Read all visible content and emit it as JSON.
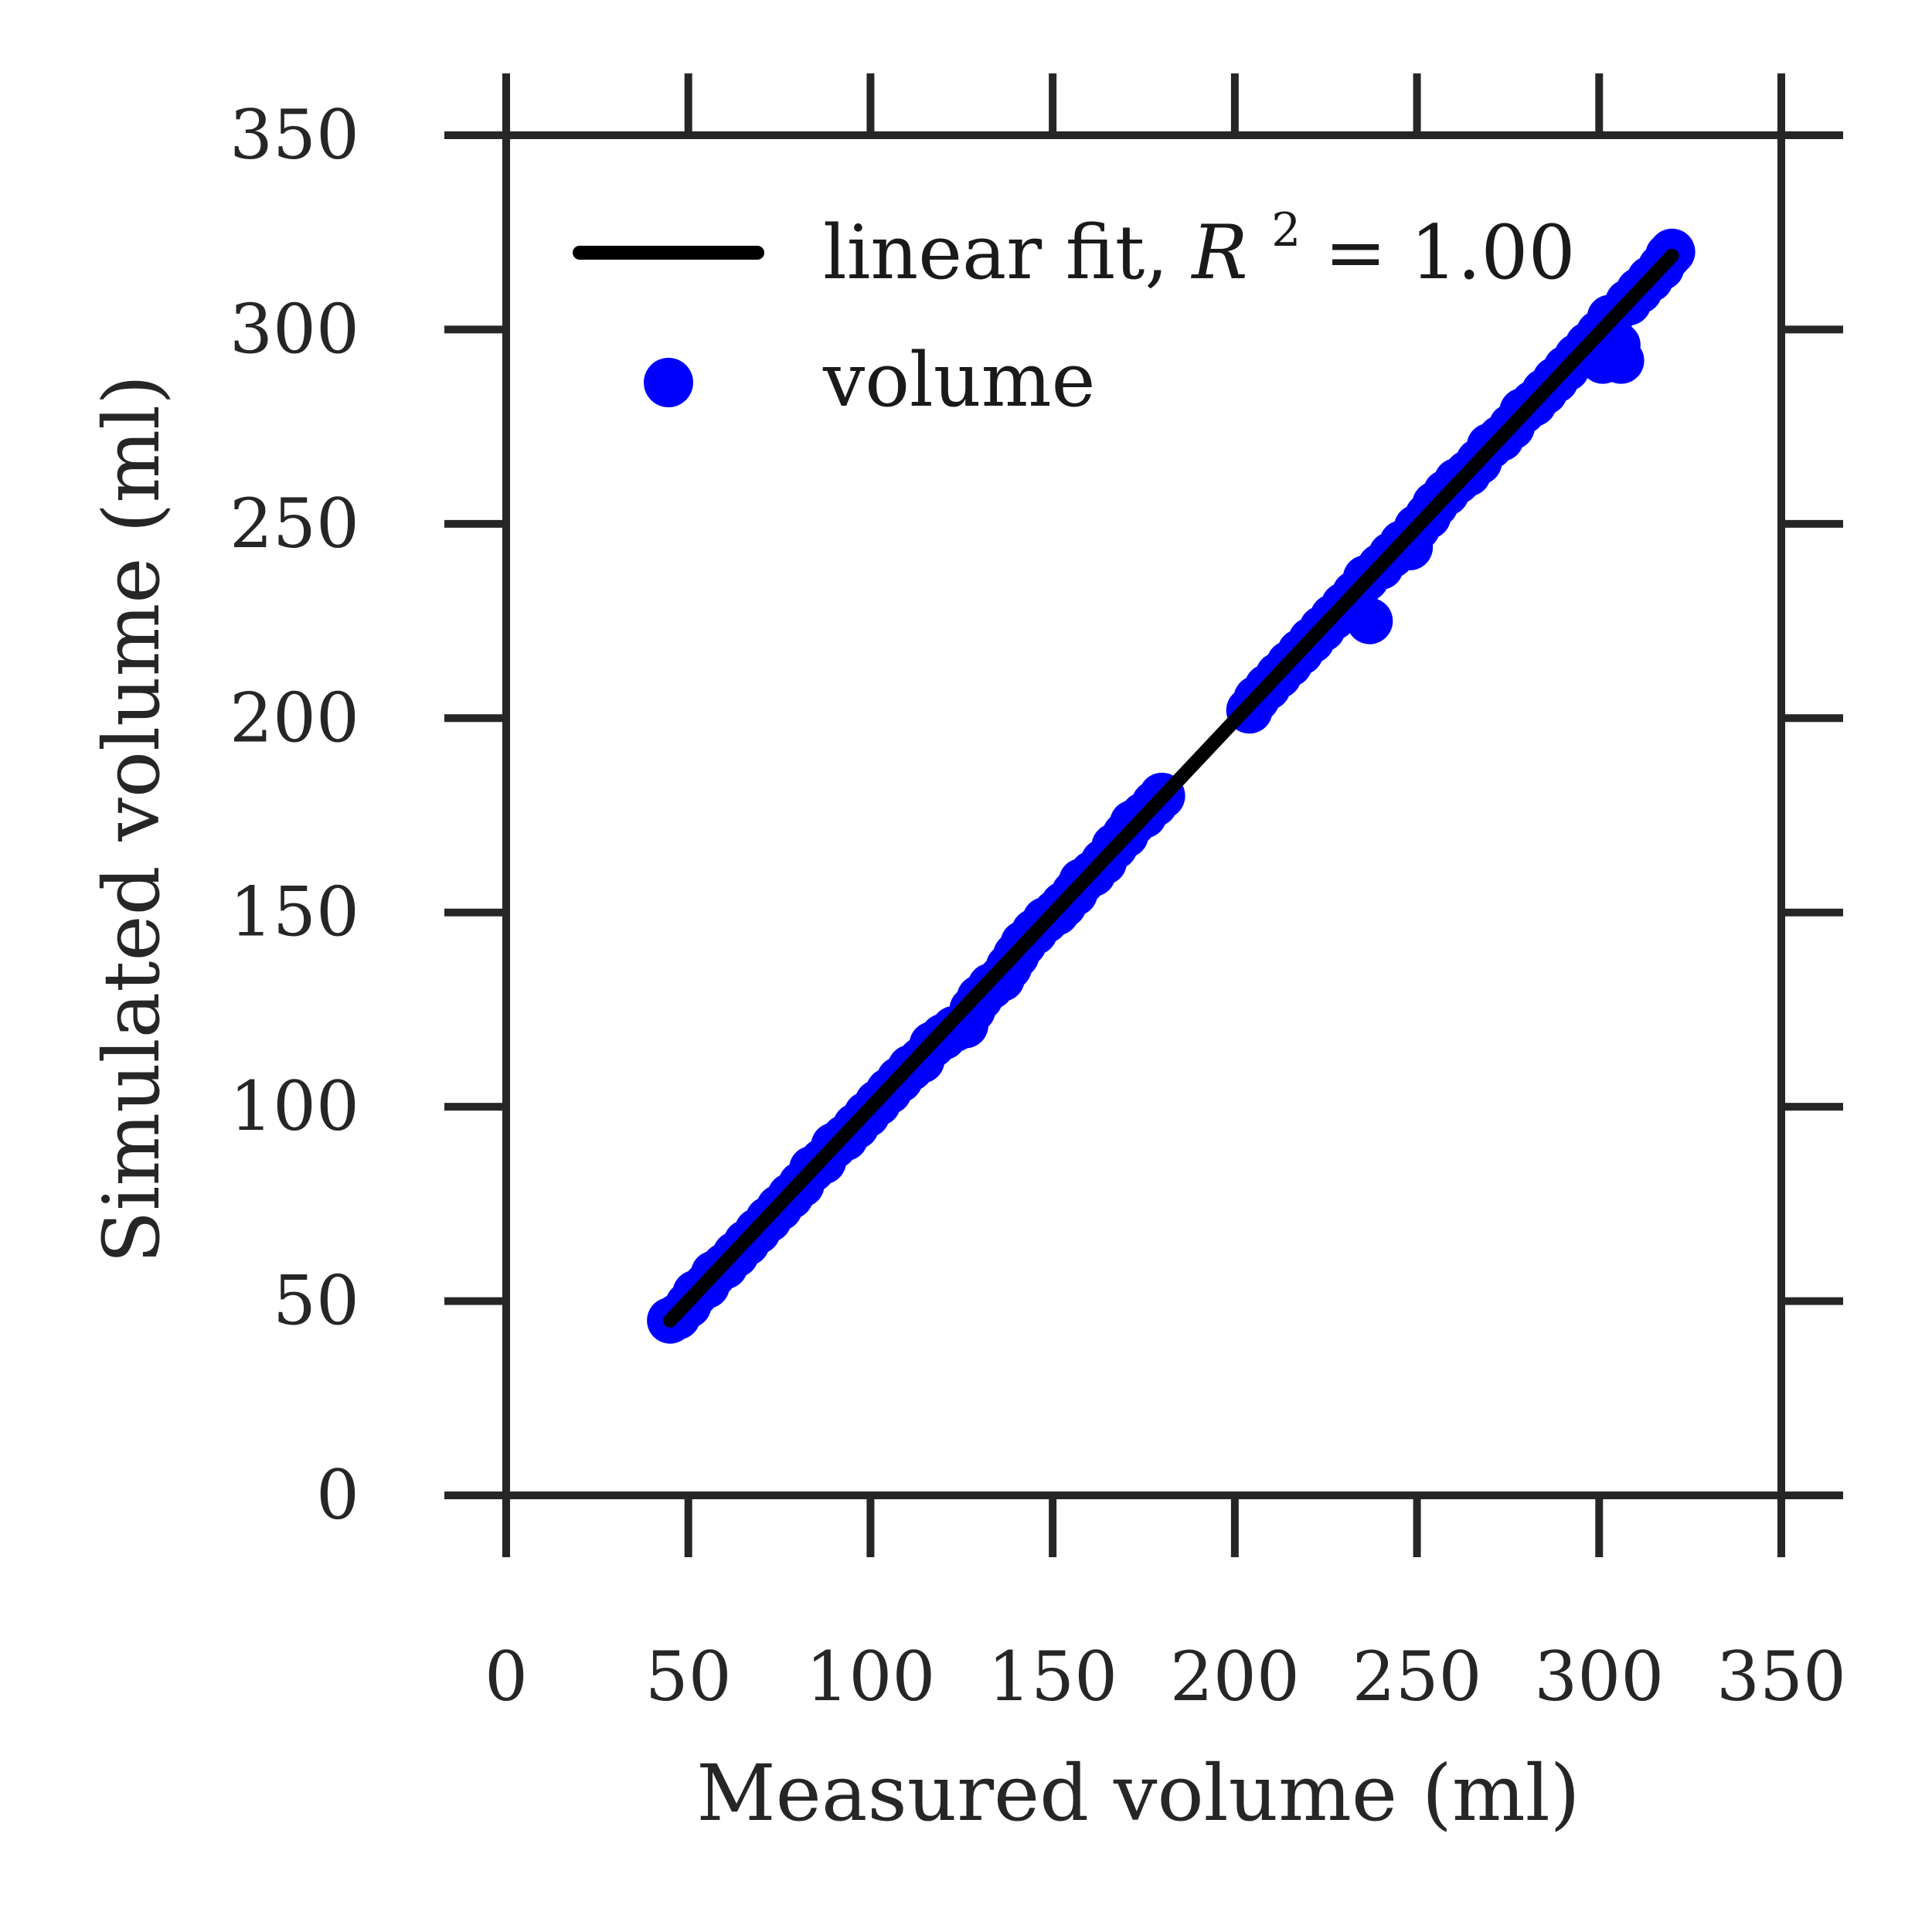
{
  "chart_data": {
    "type": "scatter",
    "xlabel": "Measured volume (ml)",
    "ylabel": "Simulated volume (ml)",
    "xlim": [
      0,
      350
    ],
    "ylim": [
      0,
      350
    ],
    "xticks": [
      "0",
      "50",
      "100",
      "150",
      "200",
      "250",
      "300",
      "350"
    ],
    "yticks": [
      "0",
      "50",
      "100",
      "150",
      "200",
      "250",
      "300",
      "350"
    ],
    "grid": false,
    "legend_position": "top-left",
    "series": [
      {
        "name": "volume",
        "kind": "scatter",
        "color": "#0000ff",
        "points": [
          [
            45,
            45
          ],
          [
            47,
            46
          ],
          [
            50,
            49
          ],
          [
            52,
            52
          ],
          [
            55,
            54
          ],
          [
            57,
            57
          ],
          [
            60,
            59
          ],
          [
            63,
            62
          ],
          [
            66,
            65
          ],
          [
            69,
            68
          ],
          [
            72,
            71
          ],
          [
            75,
            74
          ],
          [
            78,
            77
          ],
          [
            81,
            80
          ],
          [
            84,
            84
          ],
          [
            87,
            86
          ],
          [
            90,
            90
          ],
          [
            93,
            92
          ],
          [
            96,
            95
          ],
          [
            99,
            98
          ],
          [
            102,
            101
          ],
          [
            105,
            104
          ],
          [
            108,
            107
          ],
          [
            111,
            110
          ],
          [
            114,
            112
          ],
          [
            117,
            116
          ],
          [
            120,
            118
          ],
          [
            123,
            120
          ],
          [
            126,
            121
          ],
          [
            128,
            125
          ],
          [
            130,
            128
          ],
          [
            133,
            131
          ],
          [
            136,
            133
          ],
          [
            138,
            136
          ],
          [
            140,
            139
          ],
          [
            142,
            142
          ],
          [
            145,
            145
          ],
          [
            148,
            148
          ],
          [
            151,
            150
          ],
          [
            153,
            152
          ],
          [
            156,
            155
          ],
          [
            158,
            158
          ],
          [
            161,
            160
          ],
          [
            164,
            163
          ],
          [
            167,
            167
          ],
          [
            170,
            170
          ],
          [
            172,
            173
          ],
          [
            175,
            175
          ],
          [
            178,
            178
          ],
          [
            180,
            180
          ],
          [
            204,
            202
          ],
          [
            206,
            205
          ],
          [
            209,
            208
          ],
          [
            212,
            211
          ],
          [
            215,
            214
          ],
          [
            218,
            217
          ],
          [
            221,
            220
          ],
          [
            224,
            223
          ],
          [
            227,
            226
          ],
          [
            230,
            229
          ],
          [
            233,
            232
          ],
          [
            236,
            236
          ],
          [
            237,
            225
          ],
          [
            240,
            239
          ],
          [
            243,
            242
          ],
          [
            246,
            245
          ],
          [
            248,
            244
          ],
          [
            250,
            249
          ],
          [
            253,
            252
          ],
          [
            255,
            255
          ],
          [
            258,
            258
          ],
          [
            261,
            261
          ],
          [
            264,
            263
          ],
          [
            267,
            266
          ],
          [
            270,
            270
          ],
          [
            273,
            272
          ],
          [
            276,
            275
          ],
          [
            279,
            279
          ],
          [
            282,
            281
          ],
          [
            285,
            284
          ],
          [
            288,
            287
          ],
          [
            291,
            290
          ],
          [
            294,
            293
          ],
          [
            297,
            296
          ],
          [
            300,
            299
          ],
          [
            301,
            292
          ],
          [
            303,
            303
          ],
          [
            305,
            296
          ],
          [
            306,
            292
          ],
          [
            308,
            307
          ],
          [
            311,
            310
          ],
          [
            314,
            313
          ],
          [
            317,
            316
          ],
          [
            319,
            319
          ],
          [
            320,
            320
          ]
        ]
      },
      {
        "name": "linear fit, R² = 1.00",
        "kind": "line",
        "color": "#000000",
        "points": [
          [
            45,
            45
          ],
          [
            320,
            319
          ]
        ]
      }
    ],
    "legend": {
      "fit_label_prefix": "linear fit, ",
      "fit_label_r": "R",
      "fit_label_exp": "2",
      "fit_label_suffix": " = 1.00",
      "scatter_label": "volume"
    }
  }
}
